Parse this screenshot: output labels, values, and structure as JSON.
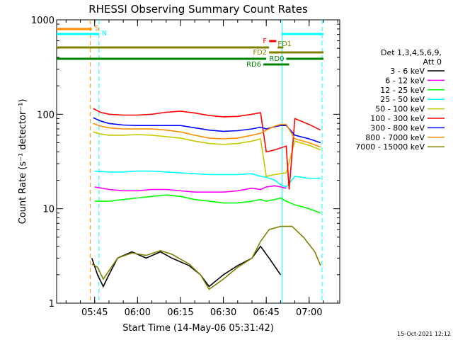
{
  "chart_data": {
    "type": "line",
    "title": "RHESSI Observing Summary Count Rates",
    "xlabel": "Start Time (14-May-06 05:31:42)",
    "ylabel": "Count Rate (s⁻¹ detector⁻¹)",
    "yscale": "log",
    "ylim": [
      1,
      1000
    ],
    "xlim": [
      "05:31:42",
      "07:10:42"
    ],
    "x_ticks": [
      "05:45",
      "06:00",
      "06:15",
      "06:30",
      "06:45",
      "07:00"
    ],
    "y_ticks": [
      "1",
      "10",
      "100",
      "1000"
    ],
    "legend_title": [
      "Det 1,3,4,5,6,9,",
      "Att 0"
    ],
    "legend_position": "right",
    "series": [
      {
        "name": "3 - 6 keV",
        "color": "#000000",
        "points": [
          [
            "05:44:00",
            3
          ],
          [
            "05:46:00",
            2
          ],
          [
            "05:48:00",
            1.5
          ],
          [
            "05:50:00",
            2
          ],
          [
            "05:53:00",
            3
          ],
          [
            "05:58:00",
            3.5
          ],
          [
            "06:03:00",
            3
          ],
          [
            "06:08:00",
            3.5
          ],
          [
            "06:12:00",
            3
          ],
          [
            "06:18:00",
            2.5
          ],
          [
            "06:22:00",
            2
          ],
          [
            "06:25:00",
            1.5
          ],
          [
            "06:30:00",
            2
          ],
          [
            "06:35:00",
            2.5
          ],
          [
            "06:40:00",
            3
          ],
          [
            "06:43:00",
            4
          ],
          [
            "06:46:00",
            3
          ],
          [
            "06:50:00",
            2
          ]
        ]
      },
      {
        "name": "6 - 12 keV",
        "color": "#ff00ff",
        "points": [
          [
            "05:45:00",
            17
          ],
          [
            "05:50:00",
            16
          ],
          [
            "05:55:00",
            15.5
          ],
          [
            "06:00:00",
            15.5
          ],
          [
            "06:05:00",
            16
          ],
          [
            "06:10:00",
            16
          ],
          [
            "06:15:00",
            15.5
          ],
          [
            "06:20:00",
            15
          ],
          [
            "06:25:00",
            15
          ],
          [
            "06:30:00",
            15
          ],
          [
            "06:35:00",
            15.5
          ],
          [
            "06:40:00",
            16.5
          ],
          [
            "06:43:00",
            16
          ],
          [
            "06:45:00",
            17
          ],
          [
            "06:48:00",
            17.5
          ],
          [
            "06:50:00",
            17
          ],
          [
            "06:52:00",
            16.5
          ]
        ]
      },
      {
        "name": "12 - 25 keV",
        "color": "#00ff00",
        "points": [
          [
            "05:45:00",
            12
          ],
          [
            "05:50:00",
            12
          ],
          [
            "05:55:00",
            12.5
          ],
          [
            "06:00:00",
            13
          ],
          [
            "06:05:00",
            13.5
          ],
          [
            "06:10:00",
            14
          ],
          [
            "06:15:00",
            13.5
          ],
          [
            "06:20:00",
            12.5
          ],
          [
            "06:25:00",
            12
          ],
          [
            "06:30:00",
            11.5
          ],
          [
            "06:35:00",
            11.5
          ],
          [
            "06:40:00",
            12
          ],
          [
            "06:43:00",
            12.5
          ],
          [
            "06:45:00",
            12
          ],
          [
            "06:48:00",
            12.5
          ],
          [
            "06:50:00",
            13
          ],
          [
            "06:52:00",
            12
          ],
          [
            "06:55:00",
            11
          ],
          [
            "07:00:00",
            10
          ],
          [
            "07:04:00",
            9
          ]
        ]
      },
      {
        "name": "25 - 50 keV",
        "color": "#00ffff",
        "points": [
          [
            "05:45:00",
            25
          ],
          [
            "05:50:00",
            24.5
          ],
          [
            "05:55:00",
            24.5
          ],
          [
            "06:00:00",
            25
          ],
          [
            "06:05:00",
            25
          ],
          [
            "06:10:00",
            24.5
          ],
          [
            "06:15:00",
            24
          ],
          [
            "06:20:00",
            23.5
          ],
          [
            "06:25:00",
            23
          ],
          [
            "06:30:00",
            23
          ],
          [
            "06:35:00",
            23
          ],
          [
            "06:40:00",
            23.5
          ],
          [
            "06:43:00",
            22
          ],
          [
            "06:45:00",
            21.5
          ],
          [
            "06:48:00",
            20
          ],
          [
            "06:50:00",
            18
          ],
          [
            "06:52:00",
            17
          ],
          [
            "06:55:00",
            22
          ],
          [
            "07:00:00",
            21
          ],
          [
            "07:04:00",
            21
          ]
        ]
      },
      {
        "name": "50 - 100 keV",
        "color": "#c8c800",
        "points": [
          [
            "05:44:30",
            65
          ],
          [
            "05:47:00",
            62
          ],
          [
            "05:50:00",
            60
          ],
          [
            "05:55:00",
            60
          ],
          [
            "06:00:00",
            61
          ],
          [
            "06:05:00",
            60
          ],
          [
            "06:10:00",
            58
          ],
          [
            "06:15:00",
            56
          ],
          [
            "06:20:00",
            52
          ],
          [
            "06:25:00",
            49
          ],
          [
            "06:30:00",
            48
          ],
          [
            "06:35:00",
            49
          ],
          [
            "06:40:00",
            52
          ],
          [
            "06:43:00",
            55
          ],
          [
            "06:45:00",
            22
          ],
          [
            "06:48:00",
            23
          ],
          [
            "06:50:00",
            23.5
          ],
          [
            "06:52:00",
            24
          ],
          [
            "06:55:00",
            52
          ],
          [
            "07:00:00",
            47
          ],
          [
            "07:04:00",
            42
          ]
        ]
      },
      {
        "name": "100 - 300 keV",
        "color": "#ff0000",
        "points": [
          [
            "05:44:30",
            115
          ],
          [
            "05:47:00",
            105
          ],
          [
            "05:50:00",
            100
          ],
          [
            "05:55:00",
            98
          ],
          [
            "06:00:00",
            98
          ],
          [
            "06:05:00",
            100
          ],
          [
            "06:10:00",
            105
          ],
          [
            "06:15:00",
            108
          ],
          [
            "06:20:00",
            103
          ],
          [
            "06:25:00",
            97
          ],
          [
            "06:30:00",
            94
          ],
          [
            "06:35:00",
            95
          ],
          [
            "06:40:00",
            100
          ],
          [
            "06:43:00",
            104
          ],
          [
            "06:45:00",
            40
          ],
          [
            "06:48:00",
            42
          ],
          [
            "06:50:00",
            44
          ],
          [
            "06:52:00",
            46
          ],
          [
            "06:53:00",
            16
          ],
          [
            "06:55:00",
            90
          ],
          [
            "07:00:00",
            78
          ],
          [
            "07:04:00",
            68
          ]
        ]
      },
      {
        "name": "300 - 800 keV",
        "color": "#0000ff",
        "points": [
          [
            "05:44:30",
            92
          ],
          [
            "05:47:00",
            85
          ],
          [
            "05:50:00",
            80
          ],
          [
            "05:55:00",
            77
          ],
          [
            "06:00:00",
            76
          ],
          [
            "06:05:00",
            76
          ],
          [
            "06:10:00",
            76
          ],
          [
            "06:15:00",
            76
          ],
          [
            "06:20:00",
            72
          ],
          [
            "06:25:00",
            68
          ],
          [
            "06:30:00",
            66
          ],
          [
            "06:35:00",
            67
          ],
          [
            "06:40:00",
            70
          ],
          [
            "06:43:00",
            73
          ],
          [
            "06:45:00",
            70
          ],
          [
            "06:48:00",
            74
          ],
          [
            "06:50:00",
            76
          ],
          [
            "06:52:00",
            76
          ],
          [
            "06:55:00",
            60
          ],
          [
            "07:00:00",
            55
          ],
          [
            "07:04:00",
            50
          ]
        ]
      },
      {
        "name": "800 - 7000 keV",
        "color": "#ff8c00",
        "points": [
          [
            "05:44:30",
            80
          ],
          [
            "05:47:00",
            75
          ],
          [
            "05:50:00",
            72
          ],
          [
            "05:55:00",
            70
          ],
          [
            "06:00:00",
            70
          ],
          [
            "06:05:00",
            70
          ],
          [
            "06:10:00",
            68
          ],
          [
            "06:15:00",
            65
          ],
          [
            "06:20:00",
            60
          ],
          [
            "06:25:00",
            56
          ],
          [
            "06:30:00",
            55
          ],
          [
            "06:35:00",
            56
          ],
          [
            "06:40:00",
            60
          ],
          [
            "06:43:00",
            63
          ],
          [
            "06:45:00",
            68
          ],
          [
            "06:48:00",
            75
          ],
          [
            "06:50:00",
            78
          ],
          [
            "06:52:00",
            78
          ],
          [
            "06:55:00",
            55
          ],
          [
            "07:00:00",
            50
          ],
          [
            "07:04:00",
            45
          ]
        ]
      },
      {
        "name": "7000 - 15000 keV",
        "color": "#808000",
        "points": [
          [
            "05:44:00",
            2.6
          ],
          [
            "05:46:00",
            2.4
          ],
          [
            "05:48:00",
            1.8
          ],
          [
            "05:50:00",
            2.2
          ],
          [
            "05:53:00",
            3
          ],
          [
            "05:58:00",
            3.4
          ],
          [
            "06:03:00",
            3.2
          ],
          [
            "06:08:00",
            3.6
          ],
          [
            "06:12:00",
            3.3
          ],
          [
            "06:18:00",
            2.6
          ],
          [
            "06:22:00",
            2
          ],
          [
            "06:25:00",
            1.4
          ],
          [
            "06:30:00",
            1.8
          ],
          [
            "06:35:00",
            2.4
          ],
          [
            "06:40:00",
            3
          ],
          [
            "06:43:00",
            4.5
          ],
          [
            "06:46:00",
            6
          ],
          [
            "06:50:00",
            6.5
          ],
          [
            "06:54:00",
            6.5
          ],
          [
            "06:58:00",
            5
          ],
          [
            "07:02:00",
            3.5
          ],
          [
            "07:04:00",
            2.5
          ]
        ]
      }
    ],
    "flag_bars": [
      {
        "label": "S",
        "color": "#ff8c00",
        "start": "05:31:42",
        "end": "05:44:00",
        "label_side": "right"
      },
      {
        "label": "N",
        "color": "#00ffff",
        "start": "05:31:42",
        "end": "05:46:30",
        "label_side": "right"
      },
      {
        "label": "N",
        "color": "#00ffff",
        "start": "06:50:30",
        "end": "07:05:00",
        "label_side": "none"
      },
      {
        "label": "F",
        "color": "#ff0000",
        "start": "06:46:00",
        "end": "06:48:30",
        "label_side": "left"
      },
      {
        "label": "FD1",
        "color": "#808000",
        "start": "05:31:42",
        "end": "06:46:00",
        "label_side": "none"
      },
      {
        "label": "FD1",
        "color": "#808000",
        "start": "06:49:00",
        "end": "06:51:00",
        "label_side": "above"
      },
      {
        "label": "FD2",
        "color": "#808000",
        "start": "06:46:00",
        "end": "07:05:00",
        "label_side": "left"
      },
      {
        "label": "RD0",
        "color": "#008000",
        "start": "05:31:42",
        "end": "06:45:00",
        "label_side": "none"
      },
      {
        "label": "RD0",
        "color": "#008000",
        "start": "06:52:00",
        "end": "07:05:00",
        "label_side": "left"
      },
      {
        "label": "RD6",
        "color": "#008000",
        "start": "06:44:00",
        "end": "06:53:00",
        "label_side": "left"
      }
    ],
    "vertical_markers": [
      {
        "time": "05:43:30",
        "color": "#ff8c00",
        "style": "dashed"
      },
      {
        "time": "05:46:30",
        "color": "#00ffff",
        "style": "dashed"
      },
      {
        "time": "06:50:30",
        "color": "#00ffff",
        "style": "solid"
      },
      {
        "time": "07:04:30",
        "color": "#00ffff",
        "style": "dashed"
      }
    ],
    "timestamp": "15-Oct-2021 12:12"
  }
}
